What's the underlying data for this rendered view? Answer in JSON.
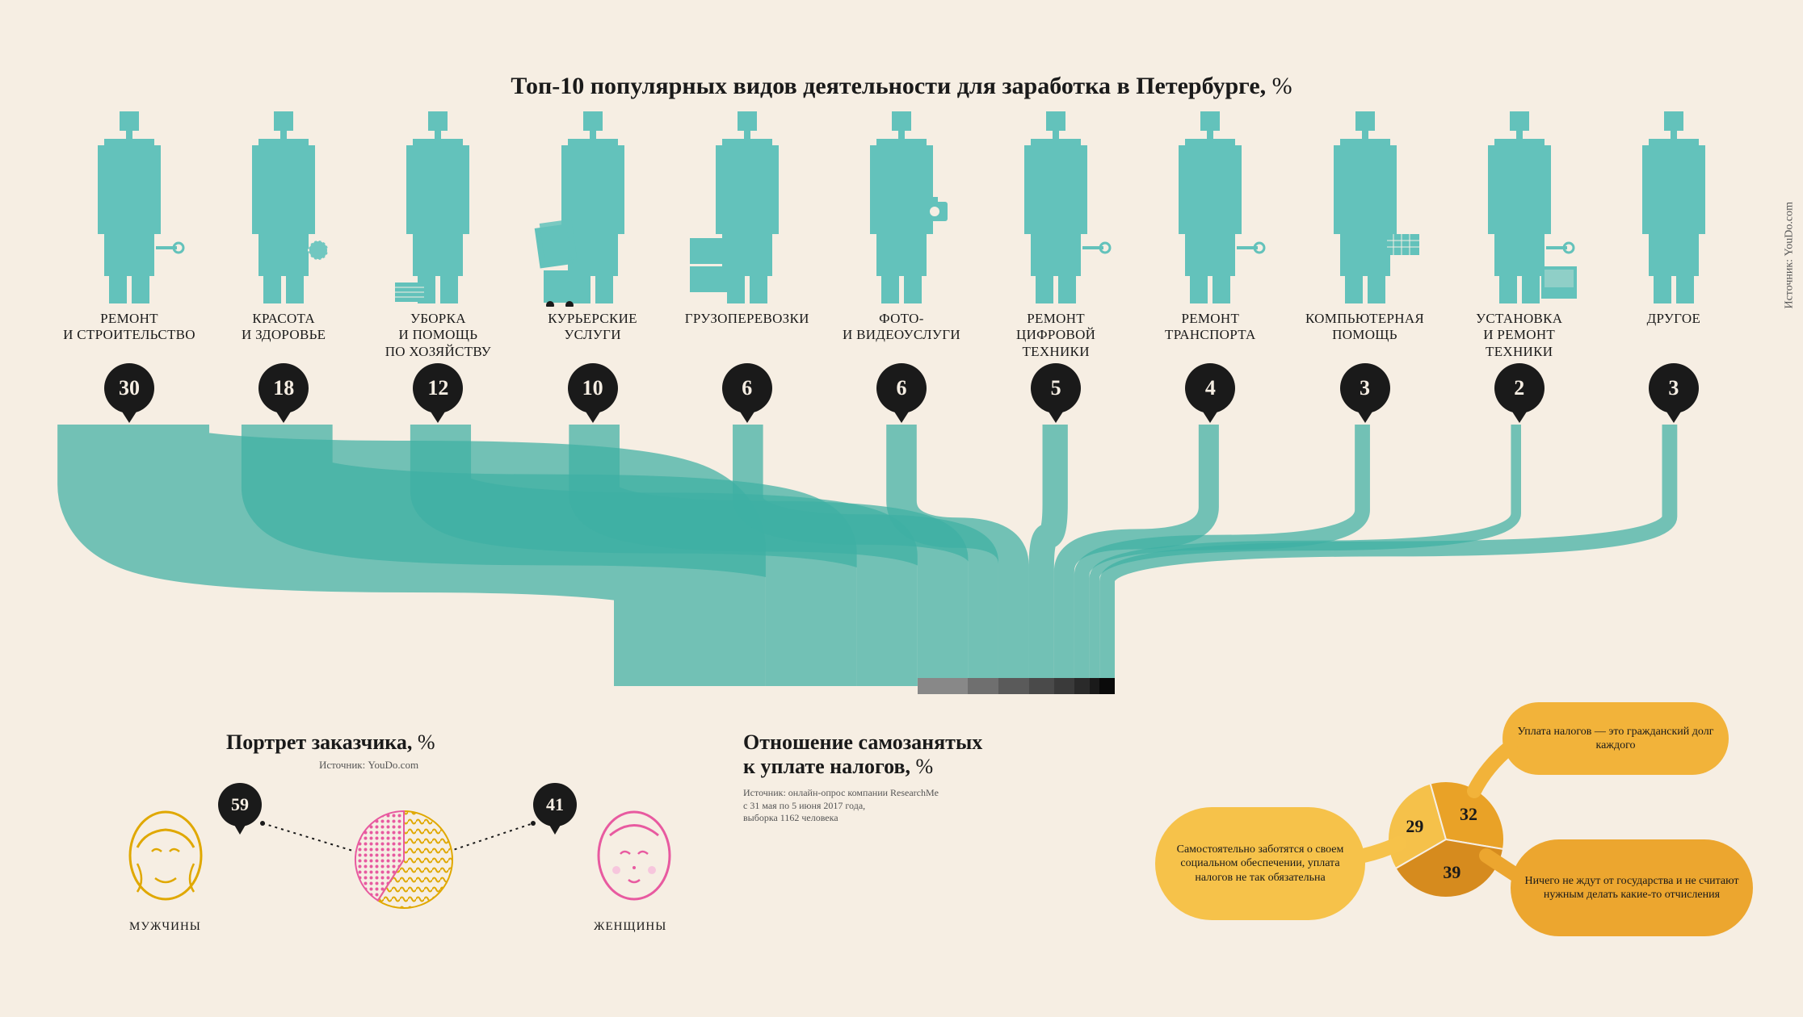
{
  "colors": {
    "background": "#f6eee3",
    "figure": "#63c2bb",
    "flow": "#3fb0a3",
    "flow_opacity": 0.72,
    "bubble": "#1a1a1a",
    "bubble_text": "#f6eee3",
    "text": "#1a1a1a",
    "source_text": "#555555",
    "male_stroke": "#e0a800",
    "female_stroke": "#e85aa0",
    "tax_pie_light": "#f5c14a",
    "tax_pie_mid": "#e9a227",
    "tax_pie_dark": "#d68b1e",
    "tax_bubble_1": "#f6c24a",
    "tax_bubble_2": "#f2b33a",
    "tax_bubble_3": "#eca62f",
    "gray_shades": [
      "#888888",
      "#6f6f6f",
      "#5a5a5a",
      "#4a4a4a",
      "#3a3a3a",
      "#2a2a2a",
      "#1a1a1a",
      "#0a0a0a"
    ]
  },
  "main_title": "Топ-10 популярных видов деятельности для заработка в Петербурге,",
  "pct_suffix": " %",
  "source_vertical": "Источник: YouDo.com",
  "categories": [
    {
      "label": "Ремонт\nи строительство",
      "value": 30
    },
    {
      "label": "Красота\nи здоровье",
      "value": 18
    },
    {
      "label": "Уборка\nи помощь\nпо хозяйству",
      "value": 12
    },
    {
      "label": "Курьерские\nуслуги",
      "value": 10
    },
    {
      "label": "Грузоперевозки",
      "value": 6
    },
    {
      "label": "Фото-\nи видеоуслуги",
      "value": 6
    },
    {
      "label": "Ремонт\nцифровой\nтехники",
      "value": 5
    },
    {
      "label": "Ремонт\nтранспорта",
      "value": 4
    },
    {
      "label": "Компьютерная\nпомощь",
      "value": 3
    },
    {
      "label": "Установка\nи ремонт\nтехники",
      "value": 2
    },
    {
      "label": "Другое",
      "value": 3
    }
  ],
  "portrait": {
    "title": "Портрет заказчика,",
    "source": "Источник: YouDo.com",
    "male": {
      "label": "МУЖЧИНЫ",
      "value": 59
    },
    "female": {
      "label": "ЖЕНЩИНЫ",
      "value": 41
    }
  },
  "tax": {
    "title_line1": "Отношение самозанятых",
    "title_line2": "к уплате налогов,",
    "source_line1": "Источник: онлайн-опрос компании ResearchMe",
    "source_line2": "с 31 мая по 5 июня 2017 года,",
    "source_line3": "выборка 1162 человека",
    "slices": [
      {
        "value": 29,
        "label": "Самостоятельно заботятся о своем социальном обеспечении, уплата налогов не так обязательна"
      },
      {
        "value": 32,
        "label": "Уплата налогов — это гражданский долг каждого"
      },
      {
        "value": 39,
        "label": "Ничего не ждут от государства и не считают нужным делать какие-то отчисления"
      }
    ]
  }
}
